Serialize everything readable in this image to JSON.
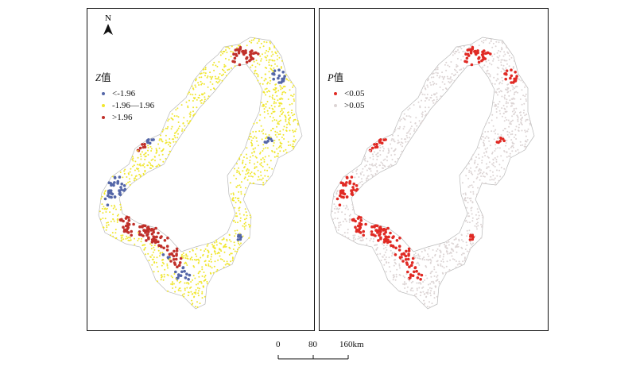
{
  "left_panel": {
    "north_label": "N",
    "legend": {
      "title_var": "Z",
      "title_suffix": "值",
      "items": [
        {
          "label": "<-1.96",
          "color": "#5567a8"
        },
        {
          "label": "-1.96—1.96",
          "color": "#f0e62e"
        },
        {
          "label": ">1.96",
          "color": "#c0302a"
        }
      ]
    }
  },
  "right_panel": {
    "legend": {
      "title_var": "P",
      "title_suffix": "值",
      "items": [
        {
          "label": "<0.05",
          "color": "#e02a24"
        },
        {
          "label": ">0.05",
          "color": "#dcd4d4"
        }
      ]
    }
  },
  "scale_bar": {
    "labels": [
      "0",
      "80",
      "160km"
    ]
  }
}
